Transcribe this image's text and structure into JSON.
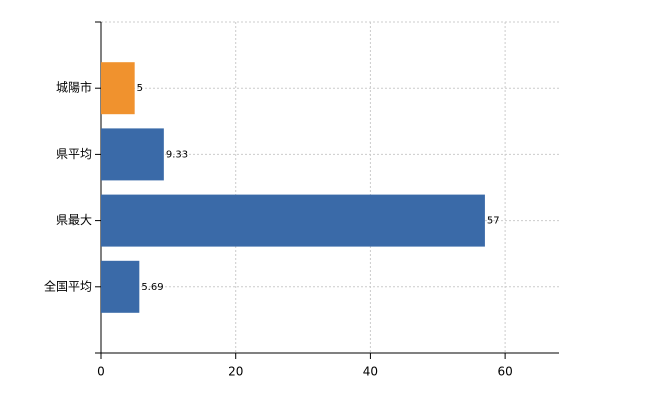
{
  "chart_data": {
    "type": "hbar",
    "categories": [
      "城陽市",
      "県平均",
      "県最大",
      "全国平均"
    ],
    "values": [
      5,
      9.33,
      57,
      5.69
    ],
    "colors": [
      "#f0922e",
      "#3a6aa8",
      "#3a6aa8",
      "#3a6aa8"
    ],
    "xlim": [
      0,
      68
    ],
    "xticks": [
      0,
      20,
      40,
      60
    ],
    "grid": true
  }
}
